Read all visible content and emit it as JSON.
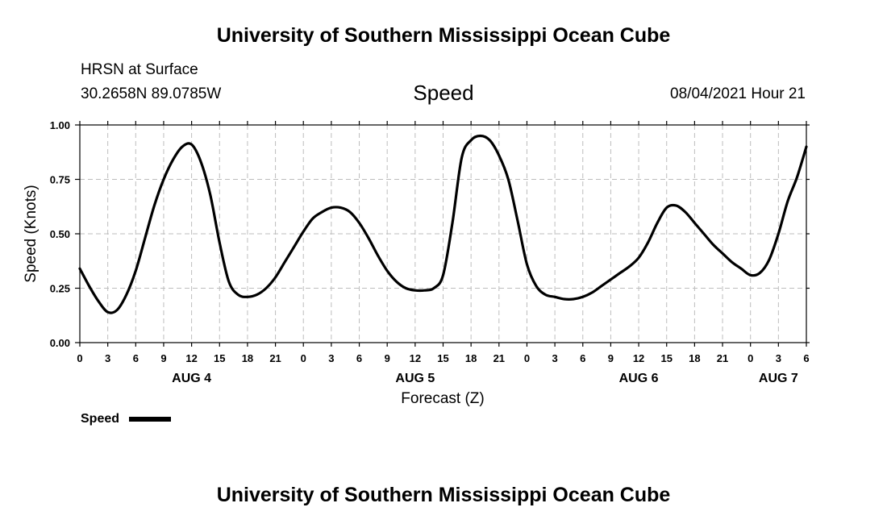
{
  "header": {
    "title_top": "University of Southern Mississippi Ocean Cube",
    "station": "HRSN at Surface",
    "coords": "30.2658N  89.0785W",
    "chart_name": "Speed",
    "datetime": "08/04/2021 Hour 21",
    "title_bottom": "University of Southern Mississippi Ocean Cube"
  },
  "chart_data": {
    "type": "line",
    "xlabel": "Forecast (Z)",
    "ylabel": "Speed (Knots)",
    "ylim": [
      0,
      1
    ],
    "xlim": [
      "2021-08-04T00:00Z",
      "2021-08-07T06:00Z"
    ],
    "grid": true,
    "legend_position": "bottom-left",
    "y_ticks": [
      "0.00",
      "0.25",
      "0.50",
      "0.75",
      "1.00"
    ],
    "x_tick_labels": [
      "0",
      "3",
      "6",
      "9",
      "12",
      "15",
      "18",
      "21",
      "0",
      "3",
      "6",
      "9",
      "12",
      "15",
      "18",
      "21",
      "0",
      "3",
      "6",
      "9",
      "12",
      "15",
      "18",
      "21",
      "0",
      "3",
      "6"
    ],
    "day_labels": [
      {
        "label": "AUG 4",
        "at": "2021-08-04T12:00Z"
      },
      {
        "label": "AUG 5",
        "at": "2021-08-05T12:00Z"
      },
      {
        "label": "AUG 6",
        "at": "2021-08-06T12:00Z"
      },
      {
        "label": "AUG 7",
        "at": "2021-08-07T03:00Z"
      }
    ],
    "series": [
      {
        "name": "Speed",
        "color": "#000000",
        "x": [
          "2021-08-04T00:00Z",
          "2021-08-04T01:00Z",
          "2021-08-04T02:00Z",
          "2021-08-04T03:00Z",
          "2021-08-04T04:00Z",
          "2021-08-04T05:00Z",
          "2021-08-04T06:00Z",
          "2021-08-04T07:00Z",
          "2021-08-04T08:00Z",
          "2021-08-04T09:00Z",
          "2021-08-04T10:00Z",
          "2021-08-04T11:00Z",
          "2021-08-04T12:00Z",
          "2021-08-04T13:00Z",
          "2021-08-04T14:00Z",
          "2021-08-04T15:00Z",
          "2021-08-04T16:00Z",
          "2021-08-04T17:00Z",
          "2021-08-04T18:00Z",
          "2021-08-04T19:00Z",
          "2021-08-04T20:00Z",
          "2021-08-04T21:00Z",
          "2021-08-04T22:00Z",
          "2021-08-04T23:00Z",
          "2021-08-05T00:00Z",
          "2021-08-05T01:00Z",
          "2021-08-05T02:00Z",
          "2021-08-05T03:00Z",
          "2021-08-05T04:00Z",
          "2021-08-05T05:00Z",
          "2021-08-05T06:00Z",
          "2021-08-05T07:00Z",
          "2021-08-05T08:00Z",
          "2021-08-05T09:00Z",
          "2021-08-05T10:00Z",
          "2021-08-05T11:00Z",
          "2021-08-05T12:00Z",
          "2021-08-05T13:00Z",
          "2021-08-05T14:00Z",
          "2021-08-05T15:00Z",
          "2021-08-05T16:00Z",
          "2021-08-05T17:00Z",
          "2021-08-05T18:00Z",
          "2021-08-05T19:00Z",
          "2021-08-05T20:00Z",
          "2021-08-05T21:00Z",
          "2021-08-05T22:00Z",
          "2021-08-05T23:00Z",
          "2021-08-06T00:00Z",
          "2021-08-06T01:00Z",
          "2021-08-06T02:00Z",
          "2021-08-06T03:00Z",
          "2021-08-06T04:00Z",
          "2021-08-06T05:00Z",
          "2021-08-06T06:00Z",
          "2021-08-06T07:00Z",
          "2021-08-06T08:00Z",
          "2021-08-06T09:00Z",
          "2021-08-06T10:00Z",
          "2021-08-06T11:00Z",
          "2021-08-06T12:00Z",
          "2021-08-06T13:00Z",
          "2021-08-06T14:00Z",
          "2021-08-06T15:00Z",
          "2021-08-06T16:00Z",
          "2021-08-06T17:00Z",
          "2021-08-06T18:00Z",
          "2021-08-06T19:00Z",
          "2021-08-06T20:00Z",
          "2021-08-06T21:00Z",
          "2021-08-06T22:00Z",
          "2021-08-06T23:00Z",
          "2021-08-07T00:00Z",
          "2021-08-07T01:00Z",
          "2021-08-07T02:00Z",
          "2021-08-07T03:00Z",
          "2021-08-07T04:00Z",
          "2021-08-07T05:00Z",
          "2021-08-07T06:00Z"
        ],
        "values": [
          0.34,
          0.26,
          0.19,
          0.14,
          0.15,
          0.22,
          0.33,
          0.48,
          0.63,
          0.75,
          0.84,
          0.9,
          0.91,
          0.83,
          0.68,
          0.46,
          0.28,
          0.22,
          0.21,
          0.22,
          0.25,
          0.3,
          0.37,
          0.44,
          0.51,
          0.57,
          0.6,
          0.62,
          0.62,
          0.6,
          0.55,
          0.48,
          0.4,
          0.33,
          0.28,
          0.25,
          0.24,
          0.24,
          0.25,
          0.31,
          0.55,
          0.85,
          0.93,
          0.95,
          0.93,
          0.86,
          0.75,
          0.56,
          0.36,
          0.26,
          0.22,
          0.21,
          0.2,
          0.2,
          0.21,
          0.23,
          0.26,
          0.29,
          0.32,
          0.35,
          0.39,
          0.46,
          0.55,
          0.62,
          0.63,
          0.6,
          0.55,
          0.5,
          0.45,
          0.41,
          0.37,
          0.34,
          0.31,
          0.32,
          0.38,
          0.5,
          0.65,
          0.76,
          0.9
        ]
      }
    ]
  }
}
